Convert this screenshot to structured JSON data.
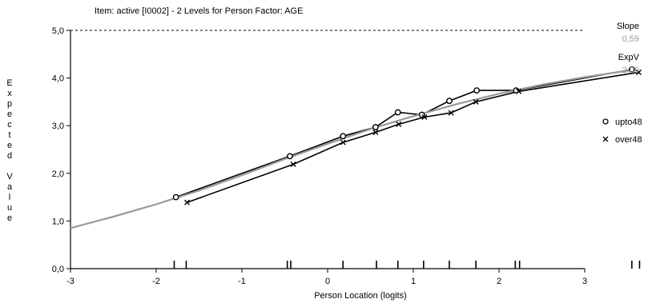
{
  "chart_data": {
    "type": "line",
    "title": "Item: active [I0002] - 2 Levels for Person Factor: AGE",
    "xlabel": "Person Location (logits)",
    "ylabel": "Expected Value",
    "xlim": [
      -3,
      3
    ],
    "ylim": [
      0,
      5
    ],
    "x_ticks": [
      "-3",
      "-2",
      "-1",
      "0",
      "1",
      "2",
      "3"
    ],
    "y_ticks": [
      "0,0",
      "1,0",
      "2,0",
      "3,0",
      "4,0",
      "5,0"
    ],
    "max_reference_line": 5,
    "slope_label": "Slope",
    "slope_value": "0,59",
    "expv_label": "ExpV",
    "expv_value": "2,00",
    "series": [
      {
        "name": "upto48",
        "marker": "circle",
        "color": "#000000",
        "x": [
          -1.77,
          -0.44,
          0.18,
          0.56,
          0.82,
          1.1,
          1.42,
          1.74,
          2.2,
          3.55
        ],
        "y": [
          1.5,
          2.36,
          2.78,
          2.97,
          3.28,
          3.23,
          3.52,
          3.74,
          3.74,
          4.18
        ]
      },
      {
        "name": "over48",
        "marker": "cross",
        "color": "#000000",
        "x": [
          -1.64,
          -0.4,
          0.18,
          0.56,
          0.83,
          1.13,
          1.44,
          1.73,
          2.23,
          3.63
        ],
        "y": [
          1.39,
          2.19,
          2.65,
          2.86,
          3.03,
          3.18,
          3.27,
          3.5,
          3.72,
          4.12
        ]
      },
      {
        "name": "",
        "role": "expected-curve",
        "color": "#999999",
        "x": [
          -3.0,
          -2.5,
          -2.0,
          -1.5,
          -1.0,
          -0.5,
          0.0,
          0.5,
          1.0,
          1.5,
          2.0,
          2.5,
          3.0,
          3.6
        ],
        "y": [
          0.85,
          1.09,
          1.35,
          1.64,
          1.96,
          2.3,
          2.62,
          2.93,
          3.2,
          3.45,
          3.67,
          3.86,
          4.02,
          4.18
        ]
      }
    ],
    "person_locations": [
      -1.79,
      -1.65,
      -0.47,
      -0.43,
      0.18,
      0.57,
      0.82,
      1.12,
      1.42,
      1.73,
      2.19,
      2.24,
      3.55,
      3.64
    ],
    "legend_position": "right"
  }
}
